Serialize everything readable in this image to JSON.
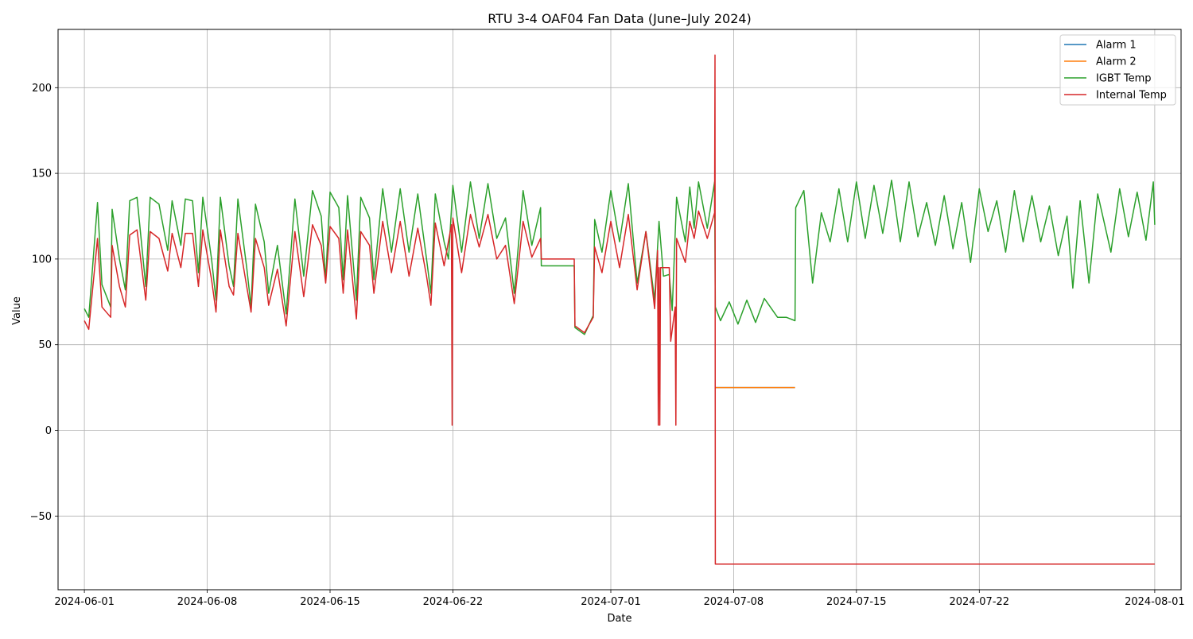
{
  "chart_data": {
    "type": "line",
    "title": "RTU 3-4 OAF04 Fan Data (June–July 2024)",
    "xlabel": "Date",
    "ylabel": "Value",
    "xlim": [
      "2024-05-30T12:00",
      "2024-08-02T12:00"
    ],
    "ylim": [
      -93,
      234
    ],
    "grid": true,
    "legend_position": "upper right",
    "x_ticks": [
      "2024-06-01",
      "2024-06-08",
      "2024-06-15",
      "2024-06-22",
      "2024-07-01",
      "2024-07-08",
      "2024-07-15",
      "2024-07-22",
      "2024-08-01"
    ],
    "y_ticks": [
      {
        "value": 200,
        "label": "200"
      },
      {
        "value": 150,
        "label": "150"
      },
      {
        "value": 100,
        "label": "100"
      },
      {
        "value": 50,
        "label": "50"
      },
      {
        "value": 0,
        "label": "0"
      },
      {
        "value": -50,
        "label": "−50"
      }
    ],
    "series": [
      {
        "name": "Alarm 1",
        "color": "#1f77b4",
        "points": [
          [
            "2024-07-06T22:00",
            25
          ],
          [
            "2024-07-11T12:00",
            25
          ]
        ]
      },
      {
        "name": "Alarm 2",
        "color": "#ff7f0e",
        "points": [
          [
            "2024-07-06T22:00",
            25
          ],
          [
            "2024-07-11T12:00",
            25
          ]
        ]
      },
      {
        "name": "IGBT Temp",
        "color": "#2ca02c",
        "points": [
          [
            "2024-06-01T00:00",
            71
          ],
          [
            "2024-06-01T06:00",
            66
          ],
          [
            "2024-06-01T18:00",
            133
          ],
          [
            "2024-06-02T00:00",
            85
          ],
          [
            "2024-06-02T12:00",
            72
          ],
          [
            "2024-06-02T14:00",
            129
          ],
          [
            "2024-06-03T00:00",
            100
          ],
          [
            "2024-06-03T08:00",
            82
          ],
          [
            "2024-06-03T14:00",
            134
          ],
          [
            "2024-06-04T00:00",
            136
          ],
          [
            "2024-06-04T12:00",
            84
          ],
          [
            "2024-06-04T18:00",
            136
          ],
          [
            "2024-06-05T06:00",
            132
          ],
          [
            "2024-06-05T18:00",
            105
          ],
          [
            "2024-06-06T00:00",
            134
          ],
          [
            "2024-06-06T12:00",
            108
          ],
          [
            "2024-06-06T18:00",
            135
          ],
          [
            "2024-06-07T04:00",
            134
          ],
          [
            "2024-06-07T12:00",
            92
          ],
          [
            "2024-06-07T18:00",
            136
          ],
          [
            "2024-06-08T06:00",
            100
          ],
          [
            "2024-06-08T12:00",
            76
          ],
          [
            "2024-06-08T18:00",
            136
          ],
          [
            "2024-06-09T06:00",
            96
          ],
          [
            "2024-06-09T12:00",
            84
          ],
          [
            "2024-06-09T18:00",
            135
          ],
          [
            "2024-06-10T06:00",
            95
          ],
          [
            "2024-06-10T12:00",
            72
          ],
          [
            "2024-06-10T18:00",
            132
          ],
          [
            "2024-06-11T06:00",
            110
          ],
          [
            "2024-06-11T12:00",
            80
          ],
          [
            "2024-06-12T00:00",
            108
          ],
          [
            "2024-06-12T12:00",
            68
          ],
          [
            "2024-06-13T00:00",
            135
          ],
          [
            "2024-06-13T12:00",
            90
          ],
          [
            "2024-06-14T00:00",
            140
          ],
          [
            "2024-06-14T12:00",
            125
          ],
          [
            "2024-06-14T18:00",
            88
          ],
          [
            "2024-06-15T00:00",
            139
          ],
          [
            "2024-06-15T12:00",
            130
          ],
          [
            "2024-06-15T18:00",
            88
          ],
          [
            "2024-06-16T00:00",
            137
          ],
          [
            "2024-06-16T12:00",
            76
          ],
          [
            "2024-06-16T18:00",
            136
          ],
          [
            "2024-06-17T06:00",
            124
          ],
          [
            "2024-06-17T12:00",
            88
          ],
          [
            "2024-06-18T00:00",
            141
          ],
          [
            "2024-06-18T12:00",
            104
          ],
          [
            "2024-06-19T00:00",
            141
          ],
          [
            "2024-06-19T12:00",
            104
          ],
          [
            "2024-06-20T00:00",
            138
          ],
          [
            "2024-06-20T12:00",
            100
          ],
          [
            "2024-06-20T18:00",
            80
          ],
          [
            "2024-06-21T00:00",
            138
          ],
          [
            "2024-06-21T12:00",
            110
          ],
          [
            "2024-06-21T18:00",
            100
          ],
          [
            "2024-06-22T00:00",
            143
          ],
          [
            "2024-06-22T12:00",
            104
          ],
          [
            "2024-06-23T00:00",
            145
          ],
          [
            "2024-06-23T12:00",
            112
          ],
          [
            "2024-06-24T00:00",
            144
          ],
          [
            "2024-06-24T12:00",
            112
          ],
          [
            "2024-06-25T00:00",
            124
          ],
          [
            "2024-06-25T12:00",
            80
          ],
          [
            "2024-06-26T00:00",
            140
          ],
          [
            "2024-06-26T12:00",
            108
          ],
          [
            "2024-06-27T00:00",
            130
          ],
          [
            "2024-06-27T01:00",
            96
          ],
          [
            "2024-06-28T22:00",
            96
          ],
          [
            "2024-06-28T23:00",
            60
          ],
          [
            "2024-06-29T12:00",
            56
          ],
          [
            "2024-06-30T00:00",
            67
          ],
          [
            "2024-06-30T02:00",
            123
          ],
          [
            "2024-06-30T12:00",
            104
          ],
          [
            "2024-07-01T00:00",
            140
          ],
          [
            "2024-07-01T12:00",
            110
          ],
          [
            "2024-07-02T00:00",
            144
          ],
          [
            "2024-07-02T12:00",
            86
          ],
          [
            "2024-07-03T00:00",
            116
          ],
          [
            "2024-07-03T12:00",
            76
          ],
          [
            "2024-07-03T18:00",
            122
          ],
          [
            "2024-07-04T00:00",
            90
          ],
          [
            "2024-07-04T08:00",
            91
          ],
          [
            "2024-07-04T12:00",
            70
          ],
          [
            "2024-07-04T18:00",
            136
          ],
          [
            "2024-07-05T06:00",
            110
          ],
          [
            "2024-07-05T12:00",
            142
          ],
          [
            "2024-07-05T18:00",
            118
          ],
          [
            "2024-07-06T00:00",
            145
          ],
          [
            "2024-07-06T12:00",
            118
          ],
          [
            "2024-07-06T22:00",
            145
          ],
          [
            "2024-07-06T23:00",
            72
          ],
          [
            "2024-07-07T06:00",
            64
          ],
          [
            "2024-07-07T18:00",
            75
          ],
          [
            "2024-07-08T06:00",
            62
          ],
          [
            "2024-07-08T18:00",
            76
          ],
          [
            "2024-07-09T06:00",
            63
          ],
          [
            "2024-07-09T18:00",
            77
          ],
          [
            "2024-07-10T12:00",
            66
          ],
          [
            "2024-07-11T00:00",
            66
          ],
          [
            "2024-07-11T12:00",
            64
          ],
          [
            "2024-07-11T13:00",
            130
          ],
          [
            "2024-07-12T00:00",
            140
          ],
          [
            "2024-07-12T12:00",
            86
          ],
          [
            "2024-07-13T00:00",
            127
          ],
          [
            "2024-07-13T12:00",
            110
          ],
          [
            "2024-07-14T00:00",
            141
          ],
          [
            "2024-07-14T12:00",
            110
          ],
          [
            "2024-07-15T00:00",
            145
          ],
          [
            "2024-07-15T12:00",
            112
          ],
          [
            "2024-07-16T00:00",
            143
          ],
          [
            "2024-07-16T12:00",
            115
          ],
          [
            "2024-07-17T00:00",
            146
          ],
          [
            "2024-07-17T12:00",
            110
          ],
          [
            "2024-07-18T00:00",
            145
          ],
          [
            "2024-07-18T12:00",
            113
          ],
          [
            "2024-07-19T00:00",
            133
          ],
          [
            "2024-07-19T12:00",
            108
          ],
          [
            "2024-07-20T00:00",
            137
          ],
          [
            "2024-07-20T12:00",
            106
          ],
          [
            "2024-07-21T00:00",
            133
          ],
          [
            "2024-07-21T12:00",
            98
          ],
          [
            "2024-07-22T00:00",
            141
          ],
          [
            "2024-07-22T12:00",
            116
          ],
          [
            "2024-07-23T00:00",
            134
          ],
          [
            "2024-07-23T12:00",
            104
          ],
          [
            "2024-07-24T00:00",
            140
          ],
          [
            "2024-07-24T12:00",
            110
          ],
          [
            "2024-07-25T00:00",
            137
          ],
          [
            "2024-07-25T12:00",
            110
          ],
          [
            "2024-07-26T00:00",
            131
          ],
          [
            "2024-07-26T12:00",
            102
          ],
          [
            "2024-07-27T00:00",
            125
          ],
          [
            "2024-07-27T08:00",
            83
          ],
          [
            "2024-07-27T18:00",
            134
          ],
          [
            "2024-07-28T06:00",
            86
          ],
          [
            "2024-07-28T18:00",
            138
          ],
          [
            "2024-07-29T12:00",
            104
          ],
          [
            "2024-07-30T00:00",
            141
          ],
          [
            "2024-07-30T12:00",
            113
          ],
          [
            "2024-07-31T00:00",
            139
          ],
          [
            "2024-07-31T12:00",
            111
          ],
          [
            "2024-07-31T22:00",
            145
          ],
          [
            "2024-08-01T00:00",
            120
          ]
        ]
      },
      {
        "name": "Internal Temp",
        "color": "#d62728",
        "points": [
          [
            "2024-06-01T00:00",
            64
          ],
          [
            "2024-06-01T06:00",
            59
          ],
          [
            "2024-06-01T18:00",
            112
          ],
          [
            "2024-06-02T00:00",
            72
          ],
          [
            "2024-06-02T12:00",
            66
          ],
          [
            "2024-06-02T14:00",
            108
          ],
          [
            "2024-06-03T00:00",
            84
          ],
          [
            "2024-06-03T08:00",
            72
          ],
          [
            "2024-06-03T14:00",
            114
          ],
          [
            "2024-06-04T00:00",
            117
          ],
          [
            "2024-06-04T12:00",
            76
          ],
          [
            "2024-06-04T18:00",
            116
          ],
          [
            "2024-06-05T06:00",
            112
          ],
          [
            "2024-06-05T18:00",
            93
          ],
          [
            "2024-06-06T00:00",
            115
          ],
          [
            "2024-06-06T12:00",
            95
          ],
          [
            "2024-06-06T18:00",
            115
          ],
          [
            "2024-06-07T04:00",
            115
          ],
          [
            "2024-06-07T12:00",
            84
          ],
          [
            "2024-06-07T18:00",
            117
          ],
          [
            "2024-06-08T06:00",
            88
          ],
          [
            "2024-06-08T12:00",
            69
          ],
          [
            "2024-06-08T18:00",
            117
          ],
          [
            "2024-06-09T06:00",
            84
          ],
          [
            "2024-06-09T12:00",
            79
          ],
          [
            "2024-06-09T18:00",
            115
          ],
          [
            "2024-06-10T06:00",
            84
          ],
          [
            "2024-06-10T12:00",
            69
          ],
          [
            "2024-06-10T18:00",
            112
          ],
          [
            "2024-06-11T06:00",
            95
          ],
          [
            "2024-06-11T12:00",
            73
          ],
          [
            "2024-06-12T00:00",
            94
          ],
          [
            "2024-06-12T12:00",
            61
          ],
          [
            "2024-06-13T00:00",
            116
          ],
          [
            "2024-06-13T12:00",
            78
          ],
          [
            "2024-06-14T00:00",
            120
          ],
          [
            "2024-06-14T12:00",
            108
          ],
          [
            "2024-06-14T18:00",
            86
          ],
          [
            "2024-06-15T00:00",
            119
          ],
          [
            "2024-06-15T12:00",
            112
          ],
          [
            "2024-06-15T18:00",
            80
          ],
          [
            "2024-06-16T00:00",
            117
          ],
          [
            "2024-06-16T12:00",
            65
          ],
          [
            "2024-06-16T18:00",
            116
          ],
          [
            "2024-06-17T06:00",
            108
          ],
          [
            "2024-06-17T12:00",
            80
          ],
          [
            "2024-06-18T00:00",
            122
          ],
          [
            "2024-06-18T12:00",
            92
          ],
          [
            "2024-06-19T00:00",
            122
          ],
          [
            "2024-06-19T12:00",
            90
          ],
          [
            "2024-06-20T00:00",
            118
          ],
          [
            "2024-06-20T12:00",
            90
          ],
          [
            "2024-06-20T18:00",
            73
          ],
          [
            "2024-06-21T00:00",
            121
          ],
          [
            "2024-06-21T12:00",
            96
          ],
          [
            "2024-06-21T22:00",
            120
          ],
          [
            "2024-06-21T23:00",
            3
          ],
          [
            "2024-06-22T00:00",
            124
          ],
          [
            "2024-06-22T12:00",
            92
          ],
          [
            "2024-06-23T00:00",
            126
          ],
          [
            "2024-06-23T12:00",
            107
          ],
          [
            "2024-06-24T00:00",
            126
          ],
          [
            "2024-06-24T12:00",
            100
          ],
          [
            "2024-06-25T00:00",
            108
          ],
          [
            "2024-06-25T12:00",
            74
          ],
          [
            "2024-06-26T00:00",
            122
          ],
          [
            "2024-06-26T12:00",
            101
          ],
          [
            "2024-06-27T00:00",
            112
          ],
          [
            "2024-06-27T01:00",
            100
          ],
          [
            "2024-06-28T22:00",
            100
          ],
          [
            "2024-06-28T23:00",
            61
          ],
          [
            "2024-06-29T12:00",
            57
          ],
          [
            "2024-06-30T00:00",
            66
          ],
          [
            "2024-06-30T02:00",
            107
          ],
          [
            "2024-06-30T12:00",
            92
          ],
          [
            "2024-07-01T00:00",
            122
          ],
          [
            "2024-07-01T12:00",
            95
          ],
          [
            "2024-07-02T00:00",
            126
          ],
          [
            "2024-07-02T12:00",
            82
          ],
          [
            "2024-07-03T00:00",
            116
          ],
          [
            "2024-07-03T12:00",
            71
          ],
          [
            "2024-07-03T16:00",
            105
          ],
          [
            "2024-07-03T17:00",
            3
          ],
          [
            "2024-07-03T18:00",
            95
          ],
          [
            "2024-07-03T19:00",
            3
          ],
          [
            "2024-07-03T20:00",
            95
          ],
          [
            "2024-07-04T08:00",
            95
          ],
          [
            "2024-07-04T10:00",
            52
          ],
          [
            "2024-07-04T16:00",
            72
          ],
          [
            "2024-07-04T17:00",
            3
          ],
          [
            "2024-07-04T18:00",
            112
          ],
          [
            "2024-07-05T06:00",
            98
          ],
          [
            "2024-07-05T12:00",
            122
          ],
          [
            "2024-07-05T18:00",
            112
          ],
          [
            "2024-07-06T00:00",
            128
          ],
          [
            "2024-07-06T12:00",
            112
          ],
          [
            "2024-07-06T22:00",
            127
          ],
          [
            "2024-07-06T22:30",
            219
          ],
          [
            "2024-07-06T23:00",
            -78
          ],
          [
            "2024-08-01T00:00",
            -78
          ]
        ]
      }
    ]
  }
}
